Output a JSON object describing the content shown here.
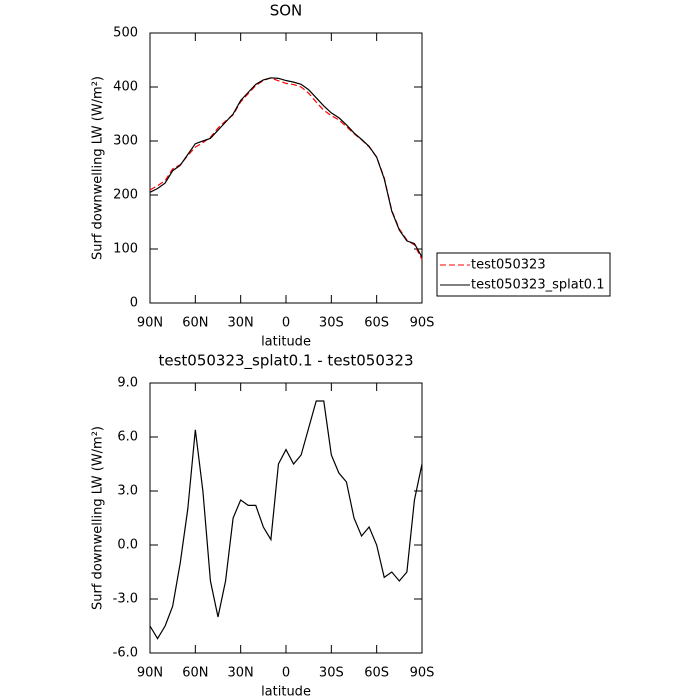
{
  "chart_data": [
    {
      "type": "line",
      "title": "SON",
      "x_label": "latitude",
      "y_label": "Surf downwelling LW (W/m²)",
      "x": [
        90,
        85,
        80,
        75,
        70,
        65,
        60,
        55,
        50,
        45,
        40,
        35,
        30,
        25,
        20,
        15,
        10,
        5,
        0,
        -5,
        -10,
        -15,
        -20,
        -25,
        -30,
        -35,
        -40,
        -45,
        -50,
        -55,
        -60,
        -65,
        -70,
        -75,
        -80,
        -85,
        -90
      ],
      "series": [
        {
          "name": "test050323",
          "color": "#ff0000",
          "dash": true,
          "values": [
            209.5,
            217.2,
            226.5,
            248.4,
            256,
            273,
            288.6,
            297,
            307,
            324,
            337,
            348.5,
            372.5,
            387.8,
            402.8,
            412,
            416.7,
            411.5,
            406.7,
            404.5,
            400,
            388.5,
            372,
            357,
            347,
            339,
            326.5,
            313.5,
            302.5,
            289,
            270,
            231.8,
            171.5,
            137,
            116.5,
            107.5,
            80.5
          ]
        },
        {
          "name": "test050323_splat0.1",
          "color": "#000000",
          "dash": false,
          "values": [
            205,
            212,
            222,
            245,
            255,
            275,
            295,
            300,
            305,
            320,
            335,
            350,
            375,
            390,
            405,
            413,
            417,
            416,
            412,
            409,
            405,
            395,
            380,
            365,
            352,
            343,
            330,
            315,
            303,
            290,
            270,
            230,
            170,
            135,
            115,
            110,
            85
          ]
        }
      ],
      "xlim": [
        90,
        -90
      ],
      "xticks": [
        {
          "value": 90,
          "label": "90N"
        },
        {
          "value": 60,
          "label": "60N"
        },
        {
          "value": 30,
          "label": "30N"
        },
        0,
        {
          "value": -30,
          "label": "30S"
        },
        {
          "value": -60,
          "label": "60S"
        },
        {
          "value": -90,
          "label": "90S"
        }
      ],
      "ylim": [
        0,
        500
      ],
      "yticks": [
        0,
        100,
        200,
        300,
        400,
        500
      ],
      "legend": "outside-right"
    },
    {
      "type": "line",
      "title": "test050323_splat0.1 - test050323",
      "x_label": "latitude",
      "y_label": "Surf downwelling LW (W/m²)",
      "x": [
        90,
        85,
        80,
        75,
        70,
        65,
        60,
        55,
        50,
        45,
        40,
        35,
        30,
        25,
        20,
        15,
        10,
        5,
        0,
        -5,
        -10,
        -15,
        -20,
        -25,
        -30,
        -35,
        -40,
        -45,
        -50,
        -55,
        -60,
        -65,
        -70,
        -75,
        -80,
        -85,
        -90
      ],
      "series": [
        {
          "color": "#000000",
          "dash": false,
          "values": [
            -4.5,
            -5.2,
            -4.5,
            -3.4,
            -1,
            2,
            6.4,
            3,
            -2,
            -4,
            -2,
            1.5,
            2.5,
            2.2,
            2.2,
            1,
            0.3,
            4.5,
            5.3,
            4.5,
            5,
            6.5,
            8,
            8,
            5,
            4,
            3.5,
            1.5,
            0.5,
            1,
            0,
            -1.8,
            -1.5,
            -2,
            -1.5,
            2.5,
            4.5
          ]
        }
      ],
      "xlim": [
        90,
        -90
      ],
      "xticks": [
        {
          "value": 90,
          "label": "90N"
        },
        {
          "value": 60,
          "label": "60N"
        },
        {
          "value": 30,
          "label": "30N"
        },
        0,
        {
          "value": -30,
          "label": "30S"
        },
        {
          "value": -60,
          "label": "60S"
        },
        {
          "value": -90,
          "label": "90S"
        }
      ],
      "ylim": [
        -6,
        9
      ],
      "yticks": [
        {
          "value": -6,
          "label": "-6.0"
        },
        {
          "value": -3,
          "label": "-3.0"
        },
        {
          "value": 0,
          "label": "0.0"
        },
        {
          "value": 3,
          "label": "3.0"
        },
        {
          "value": 6,
          "label": "6.0"
        },
        {
          "value": 9,
          "label": "9.0"
        }
      ]
    }
  ]
}
